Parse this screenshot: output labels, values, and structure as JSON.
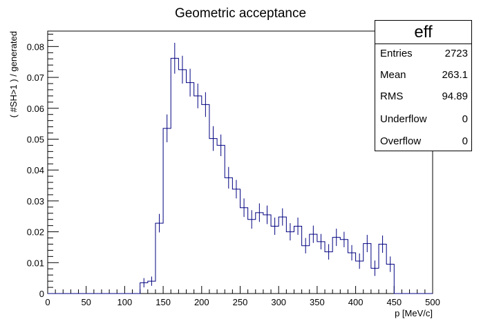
{
  "chart_data": {
    "type": "histogram",
    "title": "Geometric acceptance",
    "xlabel": "p [MeV/c]",
    "ylabel": "( #SH>1 ) / generated",
    "xlim": [
      0,
      500
    ],
    "ylim": [
      0,
      0.085
    ],
    "bin_width": 10,
    "x_ticks": [
      "0",
      "50",
      "100",
      "150",
      "200",
      "250",
      "300",
      "350",
      "400",
      "450",
      "500"
    ],
    "y_ticks": [
      "0",
      "0.01",
      "0.02",
      "0.03",
      "0.04",
      "0.05",
      "0.06",
      "0.07",
      "0.08"
    ],
    "bins": [
      {
        "x": 125,
        "y": 0.0035,
        "err": 0.0015
      },
      {
        "x": 135,
        "y": 0.004,
        "err": 0.0015
      },
      {
        "x": 145,
        "y": 0.0228,
        "err": 0.003
      },
      {
        "x": 155,
        "y": 0.0535,
        "err": 0.0045
      },
      {
        "x": 165,
        "y": 0.0762,
        "err": 0.005
      },
      {
        "x": 175,
        "y": 0.0725,
        "err": 0.0045
      },
      {
        "x": 185,
        "y": 0.0683,
        "err": 0.0045
      },
      {
        "x": 195,
        "y": 0.064,
        "err": 0.004
      },
      {
        "x": 205,
        "y": 0.0612,
        "err": 0.004
      },
      {
        "x": 215,
        "y": 0.0502,
        "err": 0.004
      },
      {
        "x": 225,
        "y": 0.048,
        "err": 0.0035
      },
      {
        "x": 235,
        "y": 0.0375,
        "err": 0.0035
      },
      {
        "x": 245,
        "y": 0.0338,
        "err": 0.003
      },
      {
        "x": 255,
        "y": 0.0278,
        "err": 0.003
      },
      {
        "x": 265,
        "y": 0.024,
        "err": 0.003
      },
      {
        "x": 275,
        "y": 0.0262,
        "err": 0.003
      },
      {
        "x": 285,
        "y": 0.0255,
        "err": 0.003
      },
      {
        "x": 295,
        "y": 0.0218,
        "err": 0.0028
      },
      {
        "x": 305,
        "y": 0.0248,
        "err": 0.0028
      },
      {
        "x": 315,
        "y": 0.02,
        "err": 0.0028
      },
      {
        "x": 325,
        "y": 0.0218,
        "err": 0.0028
      },
      {
        "x": 335,
        "y": 0.0155,
        "err": 0.0025
      },
      {
        "x": 345,
        "y": 0.0192,
        "err": 0.0028
      },
      {
        "x": 355,
        "y": 0.0168,
        "err": 0.0025
      },
      {
        "x": 365,
        "y": 0.0135,
        "err": 0.0025
      },
      {
        "x": 375,
        "y": 0.0182,
        "err": 0.0028
      },
      {
        "x": 385,
        "y": 0.0175,
        "err": 0.0025
      },
      {
        "x": 395,
        "y": 0.0132,
        "err": 0.0025
      },
      {
        "x": 405,
        "y": 0.0105,
        "err": 0.0025
      },
      {
        "x": 415,
        "y": 0.0162,
        "err": 0.0028
      },
      {
        "x": 425,
        "y": 0.0082,
        "err": 0.0025
      },
      {
        "x": 435,
        "y": 0.016,
        "err": 0.0028
      },
      {
        "x": 445,
        "y": 0.0095,
        "err": 0.0025
      }
    ],
    "legend_position": "top-right",
    "line_color": "#000080"
  },
  "stats_box": {
    "name": "eff",
    "rows": [
      {
        "label": "Entries",
        "value": "2723"
      },
      {
        "label": "Mean",
        "value": "263.1"
      },
      {
        "label": "RMS",
        "value": "94.89"
      },
      {
        "label": "Underflow",
        "value": "0"
      },
      {
        "label": "Overflow",
        "value": "0"
      }
    ]
  }
}
